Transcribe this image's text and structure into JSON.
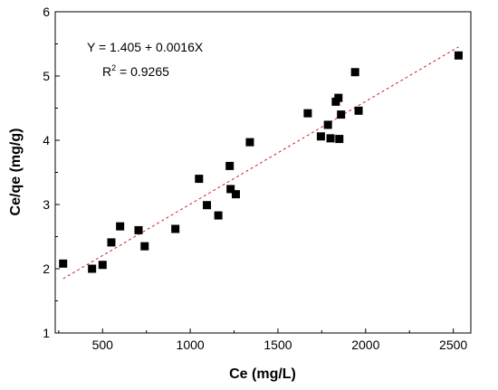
{
  "chart_data": {
    "type": "scatter",
    "xlabel": "Ce (mg/L)",
    "ylabel": "Ce/qe (mg/g)",
    "xlim": [
      230,
      2600
    ],
    "ylim": [
      1,
      6
    ],
    "x_ticks": [
      "500",
      "1000",
      "1500",
      "2000",
      "2500"
    ],
    "x_tick_values": [
      500,
      1000,
      1500,
      2000,
      2500
    ],
    "y_ticks": [
      "1",
      "2",
      "3",
      "4",
      "5",
      "6"
    ],
    "y_tick_values": [
      1,
      2,
      3,
      4,
      5,
      6
    ],
    "grid": false,
    "points": [
      {
        "x": 275,
        "y": 2.08
      },
      {
        "x": 440,
        "y": 2.0
      },
      {
        "x": 500,
        "y": 2.06
      },
      {
        "x": 550,
        "y": 2.41
      },
      {
        "x": 600,
        "y": 2.66
      },
      {
        "x": 705,
        "y": 2.6
      },
      {
        "x": 740,
        "y": 2.35
      },
      {
        "x": 915,
        "y": 2.62
      },
      {
        "x": 1050,
        "y": 3.4
      },
      {
        "x": 1095,
        "y": 2.99
      },
      {
        "x": 1160,
        "y": 2.83
      },
      {
        "x": 1225,
        "y": 3.6
      },
      {
        "x": 1230,
        "y": 3.24
      },
      {
        "x": 1260,
        "y": 3.16
      },
      {
        "x": 1340,
        "y": 3.97
      },
      {
        "x": 1670,
        "y": 4.42
      },
      {
        "x": 1745,
        "y": 4.06
      },
      {
        "x": 1785,
        "y": 4.24
      },
      {
        "x": 1800,
        "y": 4.03
      },
      {
        "x": 1830,
        "y": 4.6
      },
      {
        "x": 1845,
        "y": 4.66
      },
      {
        "x": 1850,
        "y": 4.02
      },
      {
        "x": 1860,
        "y": 4.4
      },
      {
        "x": 1940,
        "y": 5.06
      },
      {
        "x": 1960,
        "y": 4.46
      },
      {
        "x": 2530,
        "y": 5.32
      }
    ],
    "fit": {
      "intercept": 1.405,
      "slope": 0.0016,
      "x_range": [
        275,
        2530
      ],
      "color": "#cc2222"
    },
    "marker_color": "#000000",
    "annotations": {
      "equation": "Y = 1.405 + 0.0016X",
      "r2_prefix": "R",
      "r2_sup": "2",
      "r2_rest": " = 0.9265"
    }
  }
}
